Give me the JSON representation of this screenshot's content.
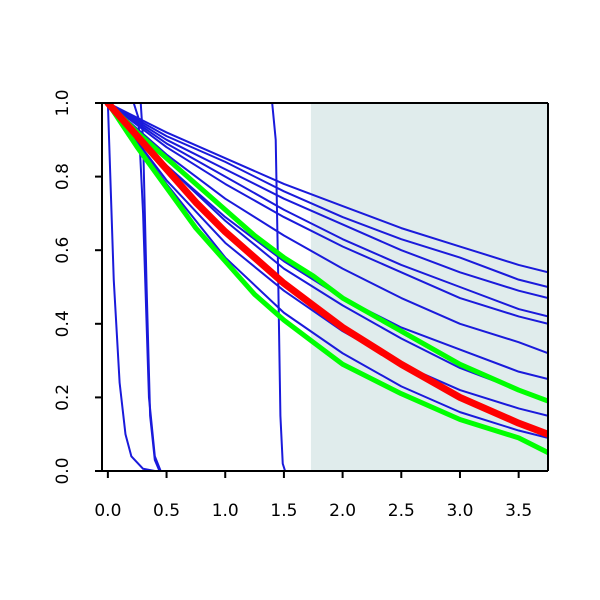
{
  "chart_data": {
    "type": "line",
    "title": "",
    "xlabel": "",
    "ylabel": "",
    "xlim": [
      -0.05,
      3.75
    ],
    "ylim": [
      0.0,
      1.0
    ],
    "x_ticks": [
      0.0,
      0.5,
      1.0,
      1.5,
      2.0,
      2.5,
      3.0,
      3.5
    ],
    "x_tick_labels": [
      "0.0",
      "0.5",
      "1.0",
      "1.5",
      "2.0",
      "2.5",
      "3.0",
      "3.5"
    ],
    "y_ticks": [
      0.0,
      0.2,
      0.4,
      0.6,
      0.8,
      1.0
    ],
    "y_tick_labels": [
      "0.0",
      "0.2",
      "0.4",
      "0.6",
      "0.8",
      "1.0"
    ],
    "grid": false,
    "shaded_region": {
      "x_from": 1.73,
      "x_to": 3.75,
      "color": "#e0ecec"
    },
    "series": [
      {
        "color": "#1a1adb",
        "width": 2,
        "x": [
          0,
          0.05,
          0.1,
          0.15,
          0.2,
          0.3,
          0.4,
          0.5
        ],
        "y": [
          1.0,
          0.52,
          0.24,
          0.1,
          0.04,
          0.006,
          0.0,
          0.0
        ]
      },
      {
        "color": "#1a1adb",
        "width": 2,
        "x": [
          0,
          0.22,
          0.26,
          0.3,
          0.35,
          0.4,
          0.45,
          0.5
        ],
        "y": [
          1.0,
          1.0,
          0.96,
          0.7,
          0.2,
          0.04,
          0.0,
          0.0
        ]
      },
      {
        "color": "#1a1adb",
        "width": 2,
        "x": [
          0,
          0.28,
          0.3,
          0.33,
          0.36,
          0.4,
          0.44,
          0.5
        ],
        "y": [
          1.0,
          1.0,
          0.9,
          0.5,
          0.15,
          0.03,
          0.0,
          0.0
        ]
      },
      {
        "color": "#1a1adb",
        "width": 2,
        "x": [
          0,
          1.4,
          1.43,
          1.45,
          1.47,
          1.49,
          1.51
        ],
        "y": [
          1.0,
          1.0,
          0.9,
          0.55,
          0.15,
          0.02,
          0.0
        ]
      },
      {
        "color": "#1a1adb",
        "width": 2,
        "x": [
          0,
          0.5,
          1.0,
          1.5,
          2.0,
          2.5,
          3.0,
          3.5,
          3.75
        ],
        "y": [
          1.0,
          0.83,
          0.69,
          0.57,
          0.47,
          0.39,
          0.33,
          0.27,
          0.25
        ]
      },
      {
        "color": "#1a1adb",
        "width": 2,
        "x": [
          0,
          0.5,
          1.0,
          1.5,
          2.0,
          2.5,
          3.0,
          3.5,
          3.75
        ],
        "y": [
          1.0,
          0.86,
          0.74,
          0.64,
          0.55,
          0.47,
          0.4,
          0.35,
          0.32
        ]
      },
      {
        "color": "#1a1adb",
        "width": 2,
        "x": [
          0,
          0.5,
          1.0,
          1.5,
          2.0,
          2.5,
          3.0,
          3.5,
          3.75
        ],
        "y": [
          1.0,
          0.88,
          0.78,
          0.69,
          0.61,
          0.54,
          0.47,
          0.42,
          0.4
        ]
      },
      {
        "color": "#1a1adb",
        "width": 2,
        "x": [
          0,
          0.5,
          1.0,
          1.5,
          2.0,
          2.5,
          3.0,
          3.5,
          3.75
        ],
        "y": [
          1.0,
          0.89,
          0.8,
          0.71,
          0.63,
          0.56,
          0.5,
          0.44,
          0.42
        ]
      },
      {
        "color": "#1a1adb",
        "width": 2,
        "x": [
          0,
          0.5,
          1.0,
          1.5,
          2.0,
          2.5,
          3.0,
          3.5,
          3.75
        ],
        "y": [
          1.0,
          0.9,
          0.82,
          0.74,
          0.67,
          0.6,
          0.54,
          0.49,
          0.47
        ]
      },
      {
        "color": "#1a1adb",
        "width": 2,
        "x": [
          0,
          0.5,
          1.0,
          1.5,
          2.0,
          2.5,
          3.0,
          3.5,
          3.75
        ],
        "y": [
          1.0,
          0.91,
          0.84,
          0.76,
          0.69,
          0.63,
          0.58,
          0.52,
          0.5
        ]
      },
      {
        "color": "#1a1adb",
        "width": 2,
        "x": [
          0,
          0.5,
          1.0,
          1.5,
          2.0,
          2.5,
          3.0,
          3.5,
          3.75
        ],
        "y": [
          1.0,
          0.92,
          0.85,
          0.78,
          0.72,
          0.66,
          0.61,
          0.56,
          0.54
        ]
      },
      {
        "color": "#1a1adb",
        "width": 2,
        "x": [
          0,
          0.5,
          1.0,
          1.5,
          2.0,
          2.5,
          3.0,
          3.5,
          3.75
        ],
        "y": [
          1.0,
          0.83,
          0.68,
          0.55,
          0.45,
          0.36,
          0.28,
          0.22,
          0.19
        ]
      },
      {
        "color": "#1a1adb",
        "width": 2,
        "x": [
          0,
          0.5,
          1.0,
          1.5,
          2.0,
          2.5,
          3.0,
          3.5,
          3.75
        ],
        "y": [
          1.0,
          0.79,
          0.62,
          0.49,
          0.38,
          0.29,
          0.22,
          0.17,
          0.15
        ]
      },
      {
        "color": "#1a1adb",
        "width": 2,
        "x": [
          0,
          0.5,
          1.0,
          1.5,
          2.0,
          2.5,
          3.0,
          3.5,
          3.75
        ],
        "y": [
          1.0,
          0.78,
          0.58,
          0.43,
          0.32,
          0.23,
          0.16,
          0.11,
          0.09
        ]
      },
      {
        "color": "#00ff00",
        "width": 5,
        "x": [
          0,
          0.25,
          0.5,
          0.75,
          1.0,
          1.25,
          1.5,
          1.75,
          2.0,
          2.5,
          3.0,
          3.5,
          3.75
        ],
        "y": [
          1.0,
          0.88,
          0.77,
          0.66,
          0.57,
          0.48,
          0.41,
          0.35,
          0.29,
          0.21,
          0.14,
          0.09,
          0.05
        ]
      },
      {
        "color": "#00ff00",
        "width": 5,
        "x": [
          0,
          0.25,
          0.5,
          0.75,
          1.0,
          1.25,
          1.5,
          1.75,
          2.0,
          2.5,
          3.0,
          3.5,
          3.75
        ],
        "y": [
          1.0,
          0.92,
          0.85,
          0.78,
          0.71,
          0.64,
          0.58,
          0.53,
          0.47,
          0.38,
          0.29,
          0.22,
          0.19
        ]
      },
      {
        "color": "#ff0000",
        "width": 7,
        "x": [
          0,
          0.25,
          0.5,
          0.75,
          1.0,
          1.25,
          1.5,
          1.75,
          2.0,
          2.5,
          3.0,
          3.5,
          3.75
        ],
        "y": [
          1.0,
          0.91,
          0.82,
          0.73,
          0.65,
          0.58,
          0.51,
          0.45,
          0.39,
          0.29,
          0.2,
          0.13,
          0.1
        ]
      }
    ]
  }
}
